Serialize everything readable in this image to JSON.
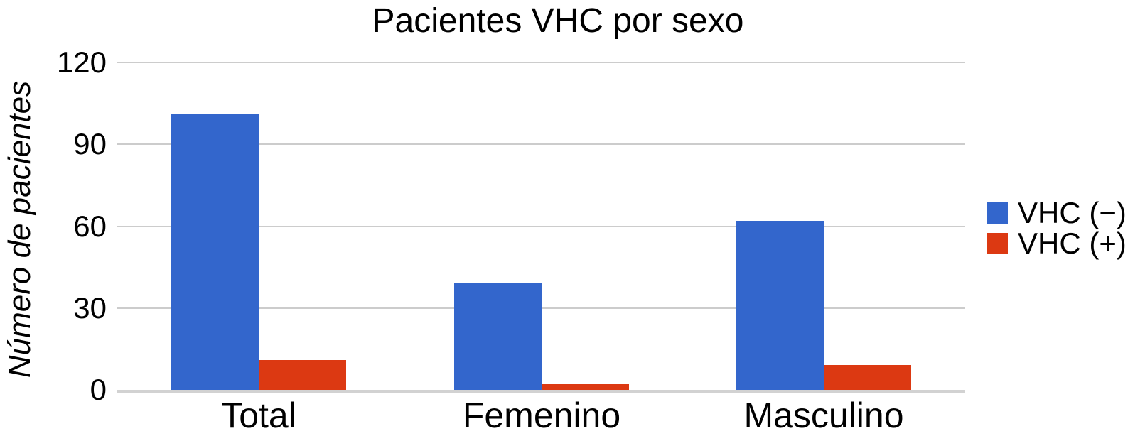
{
  "chart_data": {
    "type": "bar",
    "title": "Pacientes VHC por sexo",
    "ylabel": "Número de pacientes",
    "xlabel": "",
    "categories": [
      "Total",
      "Femenino",
      "Masculino"
    ],
    "series": [
      {
        "name": "VHC (−)",
        "color": "#3366cc",
        "values": [
          101,
          39,
          62
        ]
      },
      {
        "name": "VHC (+)",
        "color": "#dc3912",
        "values": [
          11,
          2,
          9
        ]
      }
    ],
    "ylim": [
      0,
      120
    ],
    "yticks": [
      0,
      30,
      60,
      90,
      120
    ],
    "grid": true,
    "legend_position": "right",
    "background_color": "#ffffff",
    "gridline_color": "#cccccc",
    "text_color": "#000000"
  }
}
